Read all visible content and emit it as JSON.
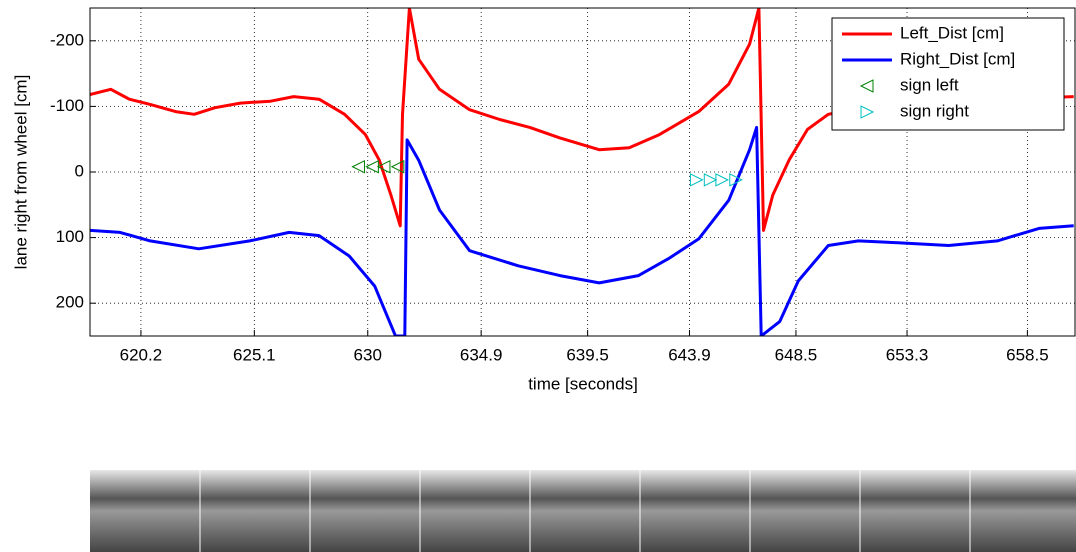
{
  "chart_data": {
    "type": "line",
    "x_label": "time [seconds]",
    "y_label": "lane right from wheel [cm]",
    "xlim": [
      618,
      660.6
    ],
    "xticks": [
      620.2,
      625.1,
      630,
      634.9,
      639.5,
      643.9,
      648.5,
      653.3,
      658.5
    ],
    "ylim": [
      -250,
      250
    ],
    "yticks": [
      -200,
      -100,
      0,
      100,
      200
    ],
    "y_reversed": true,
    "grid": true,
    "legend": "upper right",
    "series": [
      {
        "name": "Left_Dist [cm]",
        "color": "#ff0000",
        "style": "line",
        "x": [
          618.0,
          618.9,
          619.7,
          620.6,
          621.7,
          622.5,
          623.4,
          624.5,
          625.8,
          626.8,
          627.9,
          629.0,
          629.9,
          630.5,
          631.0,
          631.4,
          631.5,
          631.8,
          632.2,
          633.1,
          634.4,
          635.7,
          637.0,
          638.3,
          640.0,
          641.3,
          642.6,
          644.3,
          645.6,
          646.5,
          646.9,
          647.1,
          647.5,
          648.2,
          649.0,
          649.9,
          651.6,
          653.8,
          655.9,
          658.1,
          660.5
        ],
        "values": [
          -118,
          -126,
          -111,
          -103,
          -92,
          -88,
          -98,
          -105,
          -108,
          -115,
          -111,
          -88,
          -57,
          -18,
          35,
          82,
          -88,
          -250,
          -172,
          -126,
          -95,
          -80,
          -68,
          -52,
          -34,
          -37,
          -57,
          -92,
          -134,
          -195,
          -250,
          89,
          35,
          -18,
          -65,
          -88,
          -100,
          -105,
          -110,
          -112,
          -115
        ]
      },
      {
        "name": "Right_Dist [cm]",
        "color": "#0000ff",
        "style": "line",
        "x": [
          618.0,
          619.3,
          620.6,
          622.7,
          624.9,
          626.6,
          627.9,
          629.2,
          630.3,
          631.2,
          631.6,
          631.7,
          632.2,
          633.1,
          634.4,
          636.5,
          638.3,
          640.0,
          641.7,
          643.0,
          644.3,
          645.6,
          646.5,
          646.8,
          647.0,
          647.8,
          648.6,
          649.9,
          651.2,
          652.9,
          655.1,
          657.2,
          659.0,
          660.5
        ],
        "values": [
          89,
          92,
          105,
          117,
          105,
          92,
          97,
          128,
          174,
          250,
          250,
          -49,
          -18,
          58,
          120,
          143,
          158,
          169,
          158,
          132,
          102,
          43,
          -34,
          -68,
          250,
          228,
          166,
          112,
          105,
          108,
          112,
          105,
          86,
          82
        ]
      },
      {
        "name": "sign left",
        "color": "#008000",
        "style": "triangle-left",
        "x": [
          629.6,
          630.2,
          630.7,
          631.3
        ],
        "values": [
          -8,
          -8,
          -8,
          -8
        ]
      },
      {
        "name": "sign right",
        "color": "#00bfbf",
        "style": "triangle-right",
        "x": [
          644.2,
          644.8,
          645.3,
          645.9
        ],
        "values": [
          12,
          12,
          12,
          12
        ]
      }
    ]
  }
}
